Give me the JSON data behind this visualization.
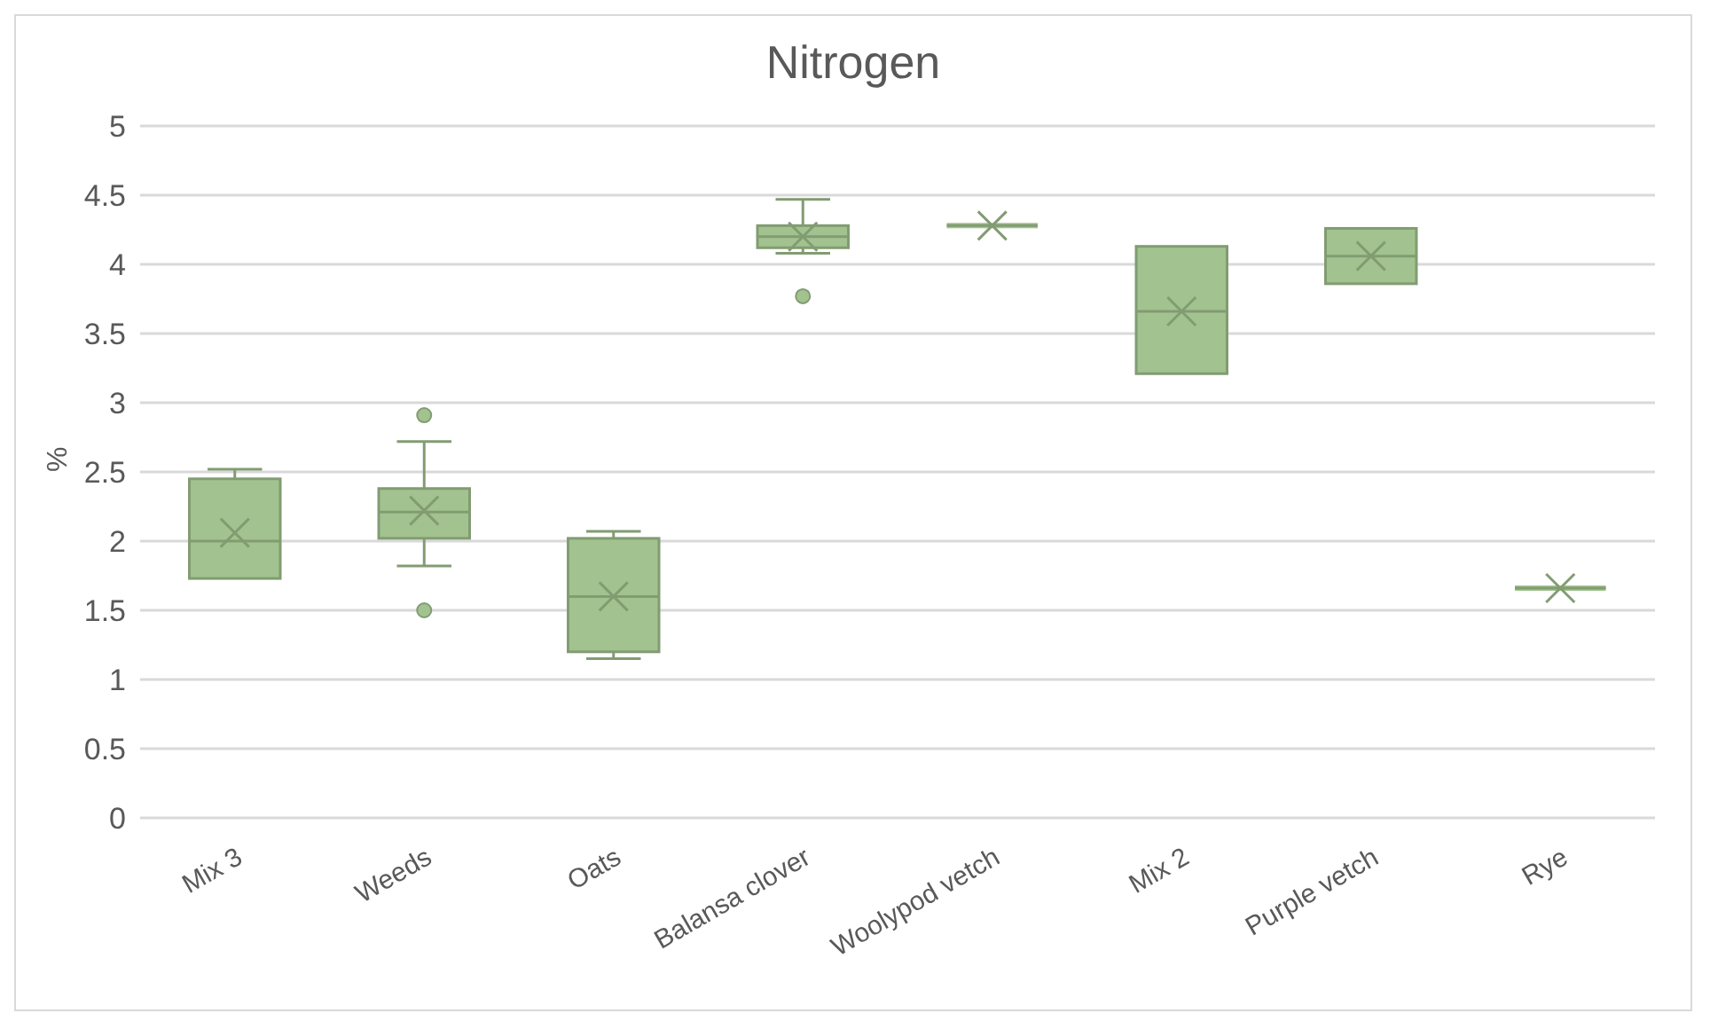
{
  "chart_data": {
    "type": "box",
    "title": "Nitrogen",
    "ylabel": "%",
    "categories": [
      "Mix 3",
      "Weeds",
      "Oats",
      "Balansa clover",
      "Woolypod vetch",
      "Mix 2",
      "Purple vetch",
      "Rye"
    ],
    "series": [
      {
        "color": "#a2c38f",
        "boxes": [
          {
            "low": 1.73,
            "q1": 1.73,
            "median": 2.0,
            "q3": 2.45,
            "high": 2.52,
            "mean": 2.06
          },
          {
            "low": 1.82,
            "q1": 2.02,
            "median": 2.21,
            "q3": 2.38,
            "high": 2.72,
            "mean": 2.22,
            "outliers": [
              2.91,
              1.5
            ]
          },
          {
            "low": 1.15,
            "q1": 1.2,
            "median": 1.6,
            "q3": 2.02,
            "high": 2.07,
            "mean": 1.6
          },
          {
            "low": 4.08,
            "q1": 4.12,
            "median": 4.2,
            "q3": 4.28,
            "high": 4.47,
            "mean": 4.2,
            "outliers": [
              3.77
            ]
          },
          {
            "low": 4.28,
            "q1": 4.28,
            "median": 4.28,
            "q3": 4.28,
            "high": 4.28,
            "mean": 4.28
          },
          {
            "low": 3.21,
            "q1": 3.21,
            "median": 3.66,
            "q3": 4.13,
            "high": 4.13,
            "mean": 3.66
          },
          {
            "low": 3.86,
            "q1": 3.86,
            "median": 4.06,
            "q3": 4.26,
            "high": 4.26,
            "mean": 4.06
          },
          {
            "low": 1.66,
            "q1": 1.66,
            "median": 1.66,
            "q3": 1.66,
            "high": 1.66,
            "mean": 1.66
          }
        ]
      }
    ],
    "ylim": [
      0,
      5
    ],
    "yticks": [
      0,
      0.5,
      1,
      1.5,
      2,
      2.5,
      3,
      3.5,
      4,
      4.5,
      5
    ],
    "grid": "y"
  }
}
